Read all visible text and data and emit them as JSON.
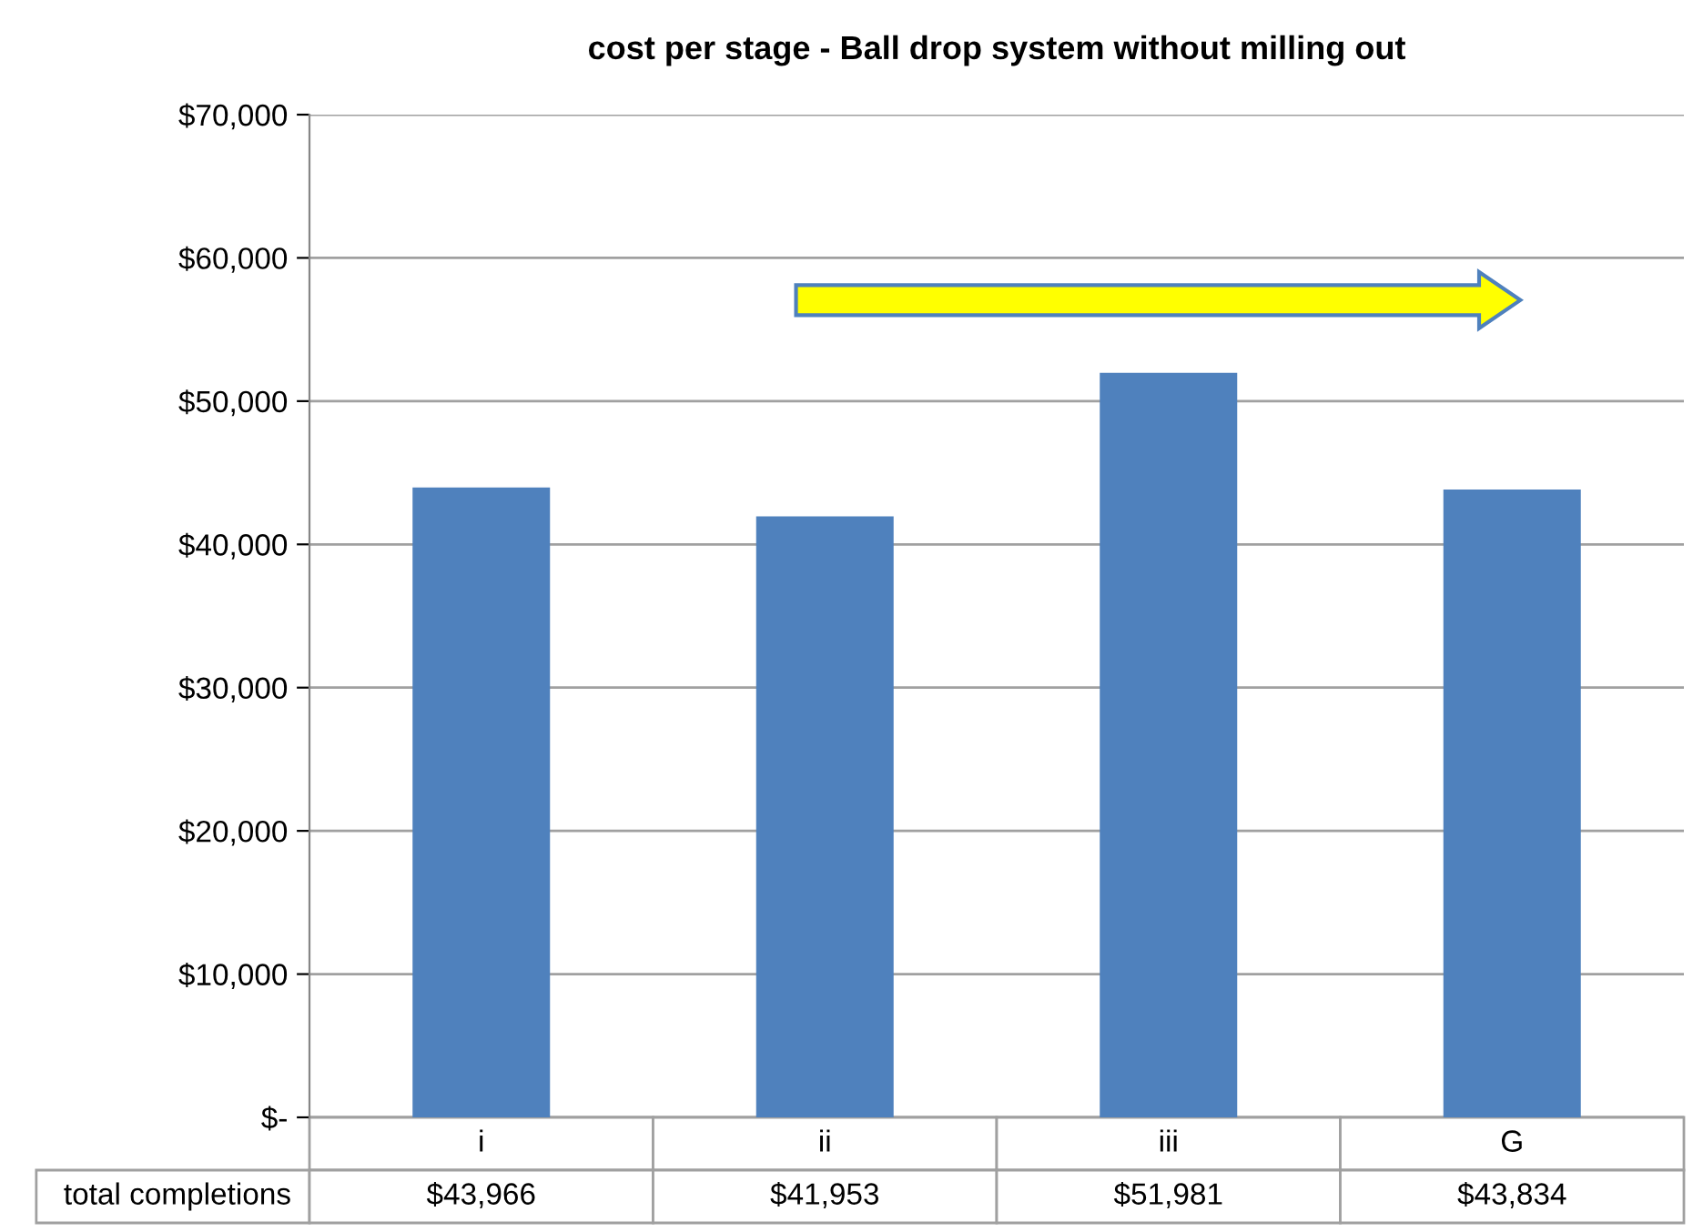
{
  "chart_data": {
    "type": "bar",
    "title": "cost per stage - Ball drop system without milling out",
    "categories": [
      "i",
      "ii",
      "iii",
      "G"
    ],
    "series": [
      {
        "name": "total completions",
        "color": "#4f81bd",
        "values": [
          43966,
          41953,
          51981,
          43834
        ],
        "value_labels": [
          "$43,966",
          "$41,953",
          "$51,981",
          "$43,834"
        ]
      }
    ],
    "ylim": [
      0,
      70000
    ],
    "yticks": [
      {
        "value": 0,
        "label": "$-"
      },
      {
        "value": 10000,
        "label": "$10,000"
      },
      {
        "value": 20000,
        "label": "$20,000"
      },
      {
        "value": 30000,
        "label": "$30,000"
      },
      {
        "value": 40000,
        "label": "$40,000"
      },
      {
        "value": 50000,
        "label": "$50,000"
      },
      {
        "value": 60000,
        "label": "$60,000"
      },
      {
        "value": 70000,
        "label": "$70,000"
      }
    ],
    "grid": "y"
  }
}
